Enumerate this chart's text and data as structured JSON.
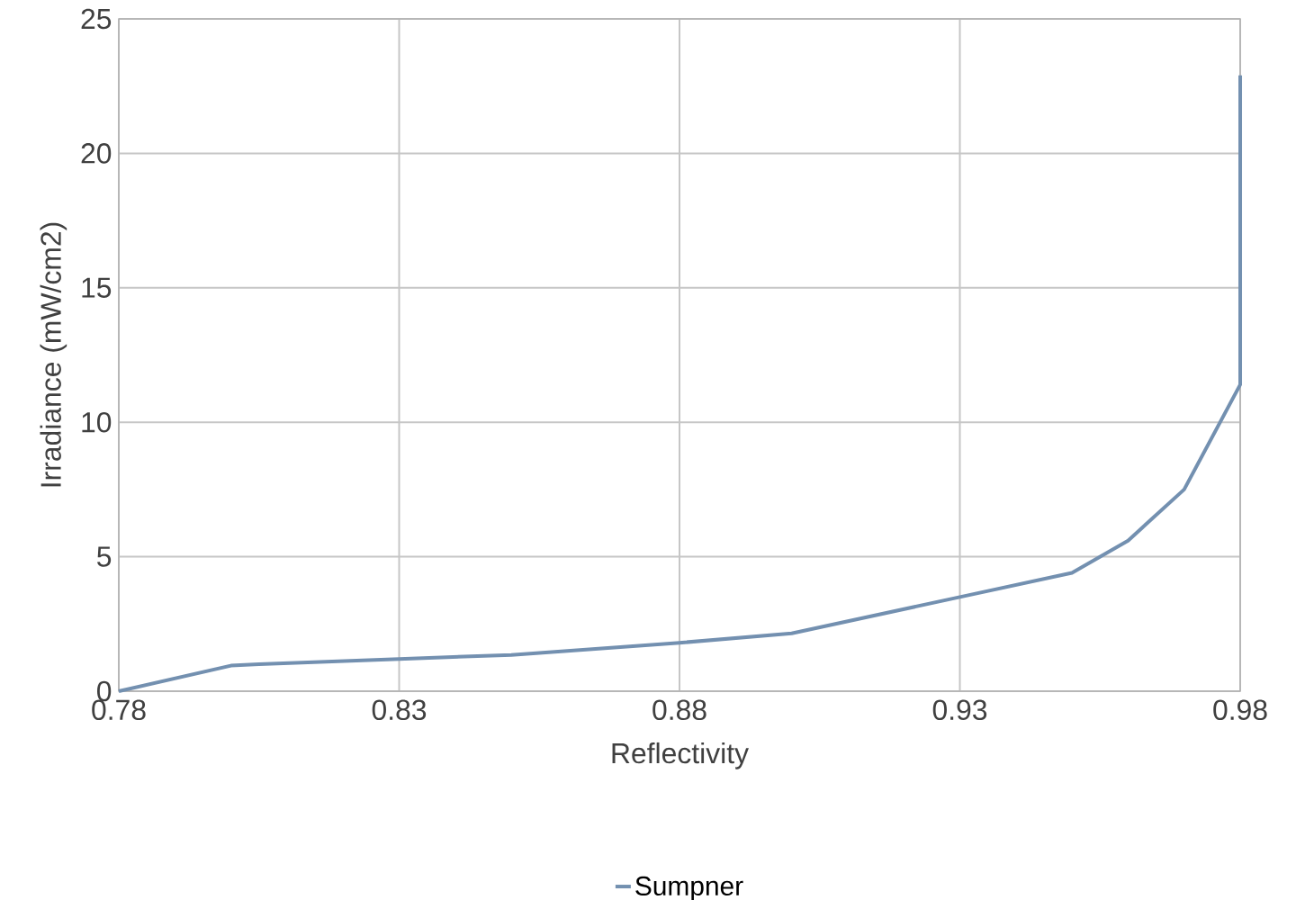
{
  "chart_data": {
    "type": "line",
    "xlabel": "Reflectivity",
    "ylabel": "Irradiance (mW/cm2)",
    "x": [
      0.78,
      0.8,
      0.805,
      0.83,
      0.85,
      0.88,
      0.9,
      0.93,
      0.95,
      0.96,
      0.97,
      0.98,
      0.98
    ],
    "series": [
      {
        "name": "Sumpner",
        "color": "#7390b0",
        "values": [
          0,
          0.95,
          1.0,
          1.2,
          1.35,
          1.8,
          2.15,
          3.5,
          4.4,
          5.6,
          7.5,
          11.4,
          22.9
        ]
      }
    ],
    "xlim": [
      0.78,
      0.98
    ],
    "ylim": [
      0,
      25
    ],
    "xticks": [
      0.78,
      0.83,
      0.88,
      0.93,
      0.98
    ],
    "yticks": [
      0,
      5,
      10,
      15,
      20,
      25
    ],
    "grid": true,
    "legend": "bottom",
    "marker": "none",
    "line_style": "solid"
  }
}
